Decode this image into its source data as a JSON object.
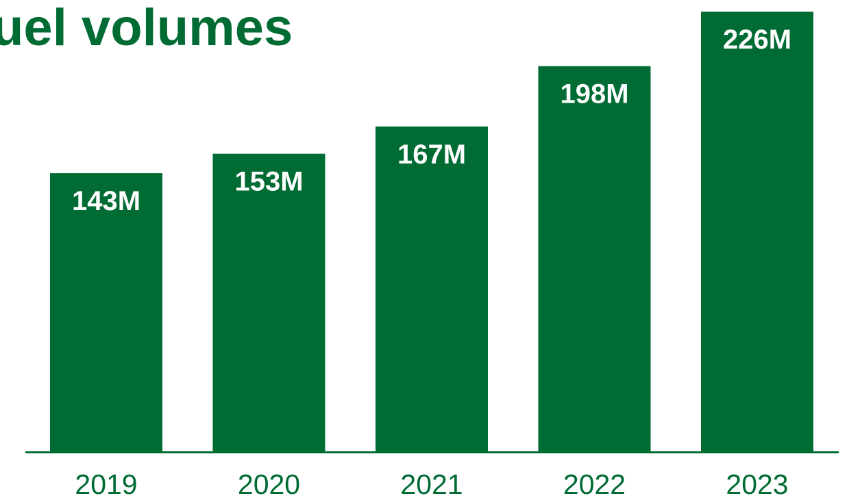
{
  "chart_data": {
    "type": "bar",
    "title": "uel volumes",
    "categories": [
      "2019",
      "2020",
      "2021",
      "2022",
      "2023"
    ],
    "values": [
      143,
      153,
      167,
      198,
      226
    ],
    "value_labels": [
      "143M",
      "153M",
      "167M",
      "198M",
      "226M"
    ],
    "unit": "M",
    "xlabel": "",
    "ylabel": "",
    "ylim": [
      0,
      226
    ],
    "grid": false,
    "legend": "none",
    "colors": {
      "bar": "#006b33",
      "axis": "#006b33",
      "value_label": "#ffffff",
      "tick_label": "#006b33",
      "title": "#006b33"
    }
  }
}
